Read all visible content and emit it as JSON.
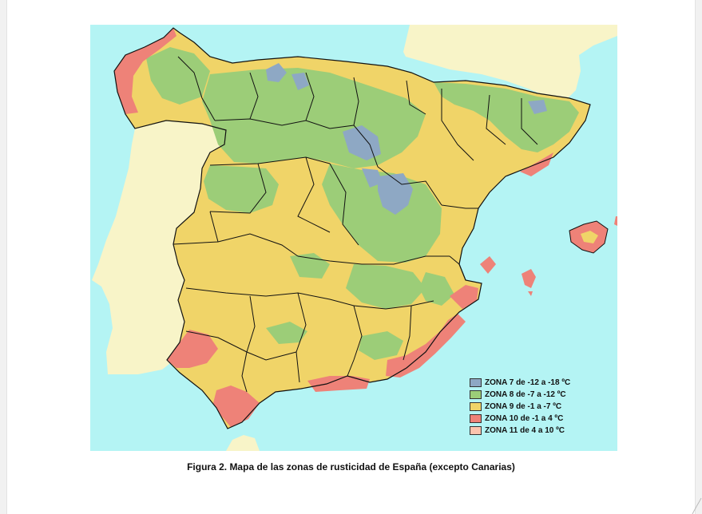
{
  "figure": {
    "caption": "Figura 2. Mapa de las zonas de rusticidad de España (excepto Canarias)"
  },
  "colors": {
    "sea": "#b4f4f4",
    "land_other": "#f8f4c8",
    "border": "#111111"
  },
  "legend": {
    "items": [
      {
        "label": "ZONA 7 de -12 a -18 ºC",
        "color": "#8ea8c4"
      },
      {
        "label": "ZONA 8 de -7 a -12 ºC",
        "color": "#9ccd78"
      },
      {
        "label": "ZONA 9 de -1 a -7 ºC",
        "color": "#f0d468"
      },
      {
        "label": "ZONA 10 de -1 a 4 ºC",
        "color": "#ee8278"
      },
      {
        "label": "ZONA 11 de 4 a 10 ºC",
        "color": "#fcc4ae"
      }
    ]
  }
}
